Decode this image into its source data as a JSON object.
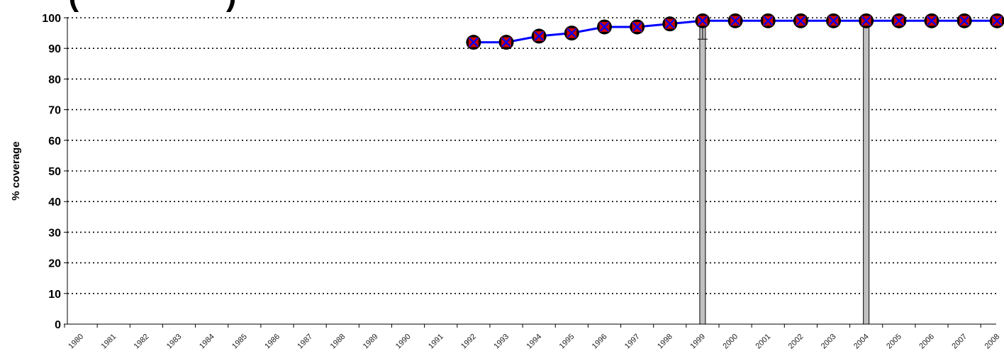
{
  "chart_data": {
    "type": "line",
    "title_fragment": "(                 )",
    "ylabel": "% coverage",
    "ylim": [
      0,
      100
    ],
    "yticks": [
      0,
      10,
      20,
      30,
      40,
      50,
      60,
      70,
      80,
      90,
      100
    ],
    "grid": "horizontal-dotted",
    "categories": [
      "1980",
      "1981",
      "1982",
      "1983",
      "1984",
      "1985",
      "1986",
      "1987",
      "1988",
      "1989",
      "1990",
      "1991",
      "1992",
      "1993",
      "1994",
      "1995",
      "1996",
      "1997",
      "1998",
      "1999",
      "2000",
      "2001",
      "2002",
      "2003",
      "2004",
      "2005",
      "2006",
      "2007",
      "2008"
    ],
    "series": [
      {
        "values": [
          null,
          null,
          null,
          null,
          null,
          null,
          null,
          null,
          null,
          null,
          null,
          null,
          92,
          92,
          94,
          95,
          97,
          97,
          98,
          99,
          99,
          99,
          99,
          99,
          99,
          99,
          99,
          99,
          99
        ],
        "colors": {
          "line": "#0000ff",
          "marker_fill": "#cc0000",
          "marker_ring": "#000000",
          "cross": "#0000ff"
        }
      }
    ],
    "bars": [
      {
        "position": 19.0,
        "value": 99,
        "error_low": 93,
        "color": "#c0c0c0"
      },
      {
        "position": 24.0,
        "value": 99,
        "color": "#c0c0c0"
      }
    ]
  }
}
